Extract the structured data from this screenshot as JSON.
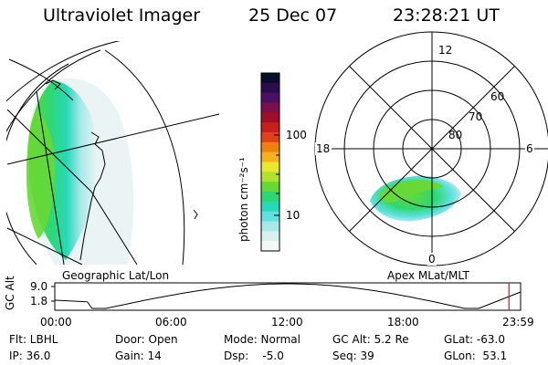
{
  "header": {
    "instrument": "Ultraviolet Imager",
    "date": "25 Dec 07",
    "time": "23:28:21 UT"
  },
  "colorbar": {
    "units_label": "photon cm⁻²s⁻¹",
    "tick_labels": [
      "100",
      "10"
    ]
  },
  "geo_panel": {
    "label": "Geographic Lat/Lon"
  },
  "polar_panel": {
    "label": "Apex MLat/MLT",
    "mlt_labels": {
      "top": "12",
      "left": "18",
      "right": "6",
      "bottom": "0"
    },
    "lat_labels": [
      "60",
      "70",
      "80"
    ]
  },
  "timeline": {
    "ylabel": "GC Alt",
    "y_ticks": [
      "9.0",
      "1.8"
    ],
    "x_ticks": [
      "00:00",
      "06:00",
      "12:00",
      "18:00",
      "23:59"
    ],
    "current_time_fraction": 0.975
  },
  "info": {
    "row1": {
      "filter": "Flt: LBHL",
      "door": "Door: Open",
      "mode": "Mode: Normal",
      "gc_alt": "GC Alt: 5.2 Re",
      "glat": "GLat: -63.0"
    },
    "row2": {
      "ip": "IP: 36.0",
      "gain": "Gain: 14",
      "dsp": "Dsp:    -5.0",
      "seq": "Seq: 39",
      "glon": "GLon:  53.1"
    }
  },
  "colors": {
    "scale": [
      "#0b0b2a",
      "#2d0c4e",
      "#4b0f64",
      "#7a0f4a",
      "#a00f2a",
      "#c81e1e",
      "#e0401a",
      "#f08010",
      "#f5b020",
      "#e8e830",
      "#b0e030",
      "#66d838",
      "#2ed870",
      "#28d8b8",
      "#60e0e0",
      "#a8e8e8",
      "#d8f0f0",
      "#f4f8f8"
    ],
    "trace": "#000000",
    "current_marker": "#ff0000"
  }
}
